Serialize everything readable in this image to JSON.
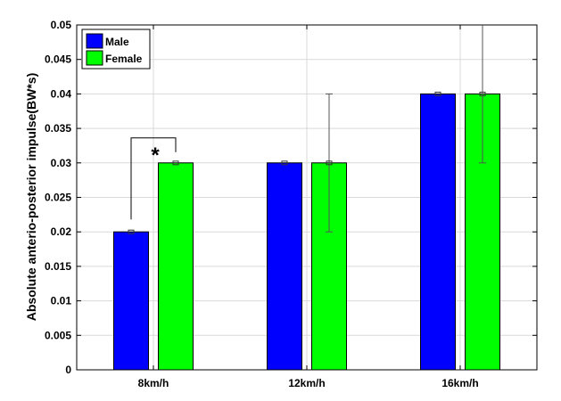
{
  "chart_data": {
    "type": "bar",
    "categories": [
      "8km/h",
      "12km/h",
      "16km/h"
    ],
    "series": [
      {
        "name": "Male",
        "color": "#0000ff",
        "values": [
          0.02,
          0.03,
          0.04
        ],
        "error": [
          0,
          0,
          0
        ]
      },
      {
        "name": "Female",
        "color": "#00ff00",
        "values": [
          0.03,
          0.03,
          0.04
        ],
        "error": [
          0,
          0.01,
          0.01
        ]
      }
    ],
    "ylabel": "Absolute anterio-posterior impulse(BW*s)",
    "xlabel": "",
    "ylim": [
      0,
      0.05
    ],
    "yticks": [
      "0",
      "0.005",
      "0.01",
      "0.015",
      "0.02",
      "0.025",
      "0.03",
      "0.035",
      "0.04",
      "0.045",
      "0.05"
    ],
    "grid": true,
    "legend_position": "top-left",
    "annotations": [
      {
        "text": "*",
        "category": "8km/h",
        "between": [
          "Male",
          "Female"
        ]
      }
    ]
  }
}
